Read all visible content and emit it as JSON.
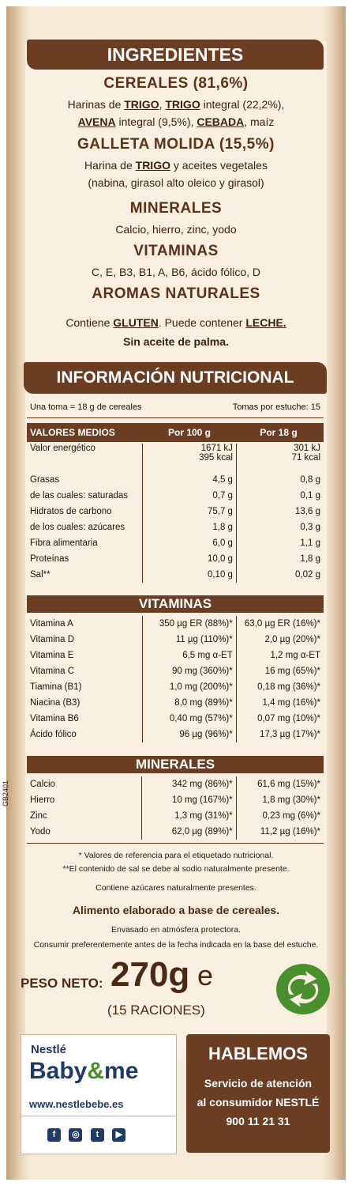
{
  "ingredients": {
    "title": "INGREDIENTES",
    "cereals_title": "CEREALES (81,6%)",
    "cereals_line1": {
      "a": "Harinas de ",
      "b": "TRIGO",
      "c": ", ",
      "d": "TRIGO",
      "e": " integral (22,2%),"
    },
    "cereals_line2": {
      "a": "AVENA",
      "b": " integral (9,5%), ",
      "c": "CEBADA",
      "d": ", maíz"
    },
    "biscuit_title": "GALLETA MOLIDA (15,5%)",
    "biscuit_line1": {
      "a": "Harina de ",
      "b": "TRIGO",
      "c": " y aceites vegetales"
    },
    "biscuit_line2": "(nabina, girasol alto oleico y girasol)",
    "minerals_title": "MINERALES",
    "minerals_text": "Calcio, hierro, zinc, yodo",
    "vitamins_title": "VITAMINAS",
    "vitamins_text": "C, E, B3, B1, A, B6, ácido fólico, D",
    "aromas_title": "AROMAS NATURALES",
    "contains_line": {
      "a": "Contiene ",
      "b": "GLUTEN",
      "c": ". Puede contener ",
      "d": "LECHE."
    },
    "palm_line": "Sin aceite de palma."
  },
  "nutrition": {
    "title": "INFORMACIÓN NUTRICIONAL",
    "serving": "Una toma = 18 g de cereales",
    "servings_per_box": "Tomas por estuche: 15",
    "header": {
      "label": "VALORES MEDIOS",
      "col1": "Por 100 g",
      "col2": "Por 18 g"
    },
    "energy": {
      "label": "Valor energético",
      "v1a": "1671 kJ",
      "v1b": "395 kcal",
      "v2a": "301 kJ",
      "v2b": "71 kcal"
    },
    "rows": [
      {
        "label": "Grasas",
        "v1": "4,5 g",
        "v2": "0,8 g"
      },
      {
        "label": "de las cuales: saturadas",
        "v1": "0,7 g",
        "v2": "0,1 g"
      },
      {
        "label": "Hidratos de carbono",
        "v1": "75,7 g",
        "v2": "13,6 g"
      },
      {
        "label": "de los cuales: azúcares",
        "v1": "1,8 g",
        "v2": "0,3 g"
      },
      {
        "label": "Fibra alimentaria",
        "v1": "6,0 g",
        "v2": "1,1 g"
      },
      {
        "label": "Proteínas",
        "v1": "10,0 g",
        "v2": "1,8 g"
      },
      {
        "label": "Sal**",
        "v1": "0,10 g",
        "v2": "0,02 g"
      }
    ],
    "vitamins_header": "VITAMINAS",
    "vitamins": [
      {
        "label": "Vitamina A",
        "v1": "350 µg ER (88%)*",
        "v2": "63,0 µg ER (16%)*"
      },
      {
        "label": "Vitamina D",
        "v1": "11 µg (110%)*",
        "v2": "2,0 µg (20%)*"
      },
      {
        "label": "Vitamina E",
        "v1": "6,5 mg α-ET",
        "v2": "1,2 mg α-ET"
      },
      {
        "label": "Vitamina C",
        "v1": "90 mg (360%)*",
        "v2": "16 mg (65%)*"
      },
      {
        "label": "Tiamina (B1)",
        "v1": "1,0 mg (200%)*",
        "v2": "0,18 mg (36%)*"
      },
      {
        "label": "Niacina (B3)",
        "v1": "8,0 mg (89%)*",
        "v2": "1,4 mg (16%)*"
      },
      {
        "label": "Vitamina B6",
        "v1": "0,40 mg (57%)*",
        "v2": "0,07 mg (10%)*"
      },
      {
        "label": "Ácido fólico",
        "v1": "96 µg (96%)*",
        "v2": "17,3 µg (17%)*"
      }
    ],
    "minerals_header": "MINERALES",
    "minerals": [
      {
        "label": "Calcio",
        "v1": "342 mg (86%)*",
        "v2": "61,6 mg (15%)*"
      },
      {
        "label": "Hierro",
        "v1": "10 mg (167%)*",
        "v2": "1,8 mg (30%)*"
      },
      {
        "label": "Zinc",
        "v1": "1,3 mg (31%)*",
        "v2": "0,23 mg (6%)*"
      },
      {
        "label": "Yodo",
        "v1": "62,0 µg (89%)*",
        "v2": "11,2 µg (16%)*"
      }
    ],
    "side_code": "GB2401",
    "footnote1": "* Valores de referencia para el etiquetado nutricional.",
    "footnote2": "**El contenido de sal se debe al sodio naturalmente presente.",
    "footnote3": "Contiene azúcares naturalmente presentes."
  },
  "product": {
    "description": "Alimento elaborado a base de cereales.",
    "packaging": "Envasado en atmósfera protectora.",
    "best_before": "Consumir preferentemente antes de la fecha indicada en la base del estuche.",
    "net_weight_label": "PESO NETO:",
    "net_weight_value": "270g",
    "estimated_mark": "e",
    "rations": "(15 RACIONES)",
    "recycling_icon": "green-dot-icon"
  },
  "brand": {
    "line1": "Nestlé",
    "line2a": "Baby",
    "line2b": "&",
    "line2c": "me",
    "url": "www.nestlebebe.es",
    "social_icons": [
      "f",
      "◎",
      "t",
      "▶"
    ],
    "blue": "#1f3a66",
    "green": "#4a8f2e"
  },
  "contact": {
    "title": "HABLEMOS",
    "line1": "Servicio de atención",
    "line2": "al consumidor NESTLÉ",
    "phone": "900 11 21 31"
  },
  "colors": {
    "brown": "#6b3d22",
    "cream": "#f8efe0",
    "text": "#3a2210"
  }
}
